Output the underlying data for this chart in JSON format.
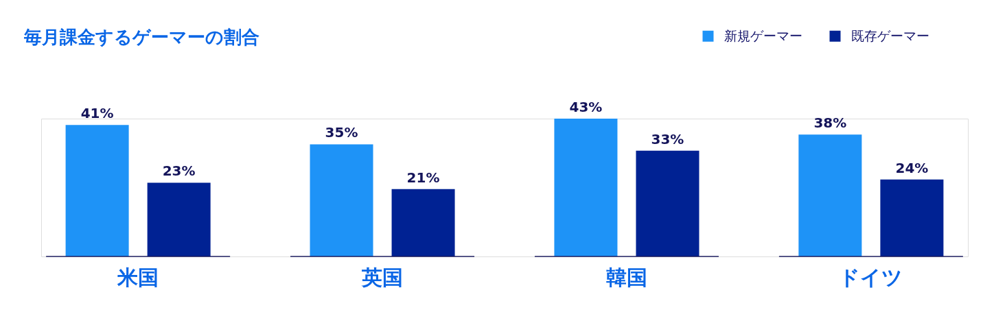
{
  "chart_data": {
    "type": "bar",
    "title": "毎月課金するゲーマーの割合",
    "categories": [
      "米国",
      "英国",
      "韓国",
      "ドイツ"
    ],
    "series": [
      {
        "name": "新規ゲーマー",
        "color": "#1e93f7",
        "values": [
          41,
          35,
          43,
          38
        ],
        "value_labels": [
          "41%",
          "35%",
          "43%",
          "38%"
        ]
      },
      {
        "name": "既存ゲーマー",
        "color": "#002293",
        "values": [
          23,
          21,
          33,
          24
        ],
        "value_labels": [
          "23%",
          "21%",
          "33%",
          "24%"
        ]
      }
    ],
    "legend": "top right",
    "grid": false
  }
}
